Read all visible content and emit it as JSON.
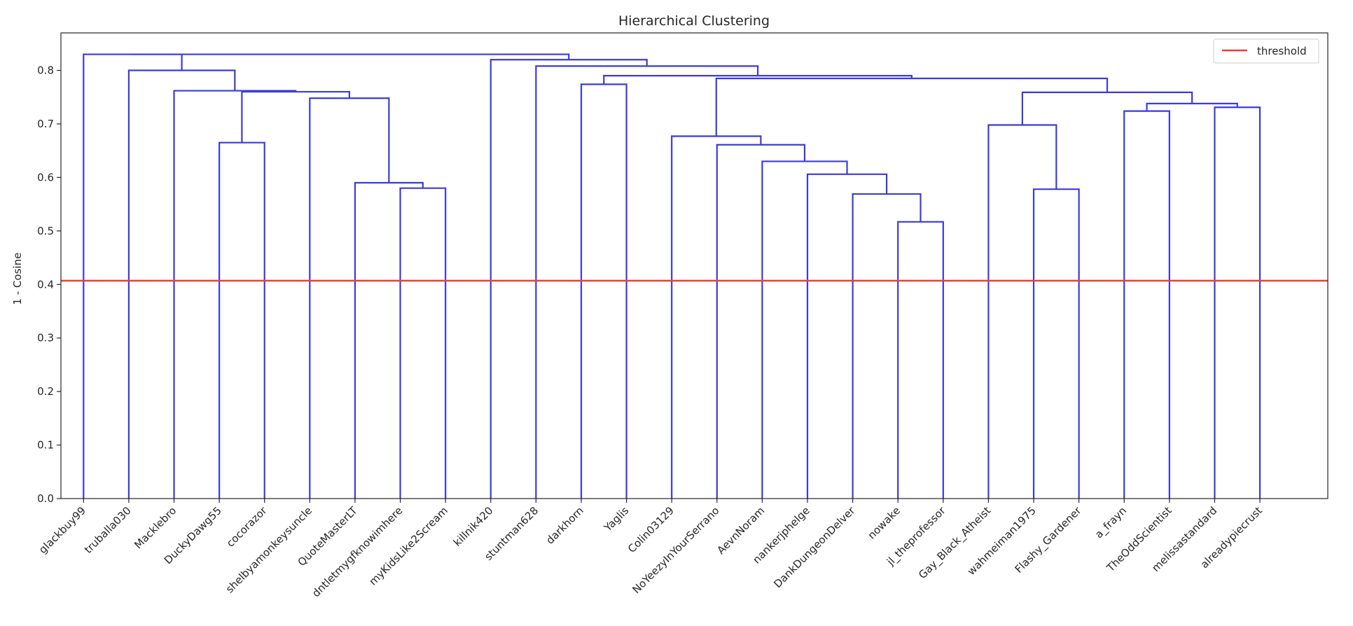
{
  "chart_data": {
    "type": "dendrogram",
    "title": "Hierarchical Clustering",
    "xlabel": "",
    "ylabel": "1 - Cosine",
    "ylim": [
      0,
      0.87
    ],
    "yticks": [
      0.0,
      0.1,
      0.2,
      0.3,
      0.4,
      0.5,
      0.6,
      0.7,
      0.8
    ],
    "leaves": [
      "glackbuy99",
      "truballa030",
      "Macklebro",
      "DuckyDawg55",
      "cocorazor",
      "shelbyamonkeysuncle",
      "QuoteMasterLT",
      "dntletmygfknowimhere",
      "myKidsLike2Scream",
      "killnik420",
      "stuntman628",
      "darkhorn",
      "Yaglis",
      "Colin03129",
      "NoYeezyInYourSerrano",
      "AevnNoram",
      "nankerjphelge",
      "DankDungeonDelver",
      "nowake",
      "jl_theprofessor",
      "Gay_Black_Atheist",
      "wahmeiman1975",
      "Flashy_Gardener",
      "a_frayn",
      "TheOddScientist",
      "melissastandard",
      "alreadypiecrust"
    ],
    "merges": [
      {
        "children": [
          3,
          4
        ],
        "height": 0.665
      },
      {
        "children": [
          7,
          8
        ],
        "height": 0.58
      },
      {
        "children": [
          6,
          "m1"
        ],
        "height": 0.59
      },
      {
        "children": [
          5,
          "m2"
        ],
        "height": 0.748
      },
      {
        "children": [
          "m0",
          "m3"
        ],
        "height": 0.76
      },
      {
        "children": [
          2,
          "m4"
        ],
        "height": 0.762
      },
      {
        "children": [
          1,
          "m5"
        ],
        "height": 0.8
      },
      {
        "children": [
          0,
          "m6"
        ],
        "height": 0.83
      },
      {
        "children": [
          18,
          19
        ],
        "height": 0.517
      },
      {
        "children": [
          17,
          "m8"
        ],
        "height": 0.569
      },
      {
        "children": [
          16,
          "m9"
        ],
        "height": 0.606
      },
      {
        "children": [
          15,
          "m10"
        ],
        "height": 0.63
      },
      {
        "children": [
          14,
          "m11"
        ],
        "height": 0.661
      },
      {
        "children": [
          13,
          "m12"
        ],
        "height": 0.677
      },
      {
        "children": [
          21,
          22
        ],
        "height": 0.578
      },
      {
        "children": [
          20,
          "m14"
        ],
        "height": 0.698
      },
      {
        "children": [
          23,
          24
        ],
        "height": 0.724
      },
      {
        "children": [
          25,
          26
        ],
        "height": 0.731
      },
      {
        "children": [
          "m16",
          "m17"
        ],
        "height": 0.738
      },
      {
        "children": [
          "m15",
          "m18"
        ],
        "height": 0.759
      },
      {
        "children": [
          "m13",
          "m19"
        ],
        "height": 0.785
      },
      {
        "children": [
          11,
          12
        ],
        "height": 0.774
      },
      {
        "children": [
          "m21",
          "m20"
        ],
        "height": 0.79
      },
      {
        "children": [
          10,
          "m22"
        ],
        "height": 0.808
      },
      {
        "children": [
          9,
          "m23"
        ],
        "height": 0.82
      },
      {
        "children": [
          "m7",
          "m24"
        ],
        "height": 0.83
      }
    ],
    "threshold": 0.407,
    "legend": {
      "label": "threshold",
      "placement": "top-right"
    },
    "colors": {
      "links": "#3b3bdc",
      "threshold": "#ee3b3b",
      "axis": "#262626"
    }
  }
}
